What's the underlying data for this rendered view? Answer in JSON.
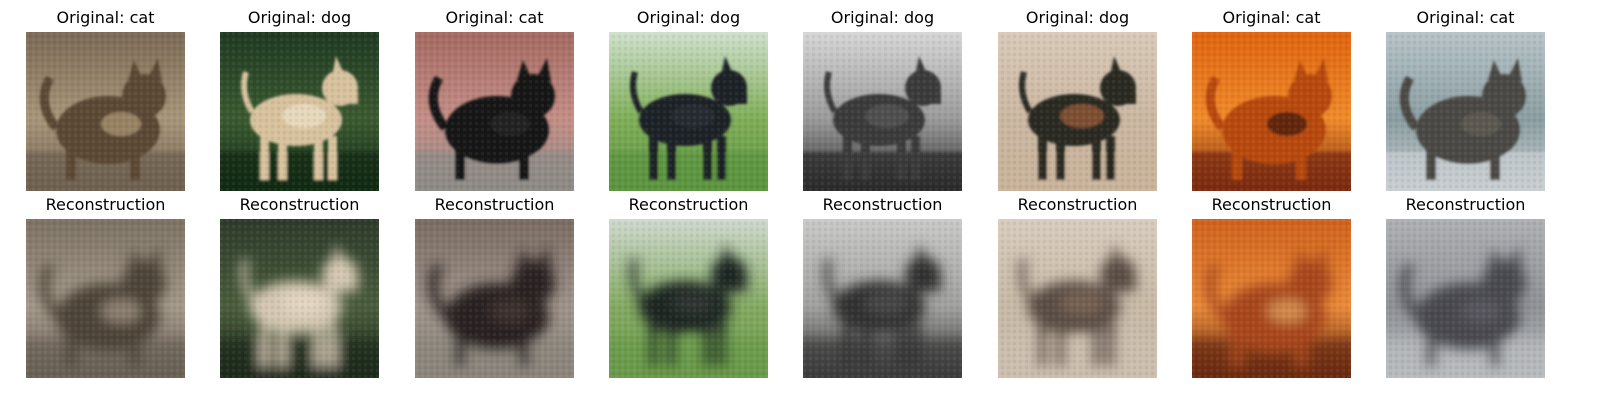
{
  "figure": {
    "reconstruction_label": "Reconstruction",
    "pairs": [
      {
        "original_title": "Original: cat",
        "subject": "cat",
        "original_palette": {
          "bg": "#7b6a55",
          "bg2": "#a89579",
          "subject": "#5b4a36",
          "accent": "#c9b28a",
          "ground": "#6e6150"
        },
        "recon_palette": {
          "bg": "#7d7262",
          "bg2": "#a3988a",
          "subject": "#4e4438",
          "accent": "#bfb3a1",
          "ground": "#6a6055"
        }
      },
      {
        "original_title": "Original: dog",
        "subject": "dog",
        "original_palette": {
          "bg": "#1f3a22",
          "bg2": "#3b5a30",
          "subject": "#d8c29e",
          "accent": "#f2e6cf",
          "ground": "#0f2a14"
        },
        "recon_palette": {
          "bg": "#2d3a2a",
          "bg2": "#4a5d3c",
          "subject": "#d4c7b2",
          "accent": "#ebe0cd",
          "ground": "#1f2a1c"
        }
      },
      {
        "original_title": "Original: cat",
        "subject": "cat",
        "original_palette": {
          "bg": "#a46a62",
          "bg2": "#c48e86",
          "subject": "#151515",
          "accent": "#2a2a2a",
          "ground": "#8d8a86"
        },
        "recon_palette": {
          "bg": "#7a6c62",
          "bg2": "#9e938a",
          "subject": "#2a2420",
          "accent": "#4a403a",
          "ground": "#8a847c"
        }
      },
      {
        "original_title": "Original: dog",
        "subject": "dog",
        "original_palette": {
          "bg": "#cfe0cd",
          "bg2": "#7fae58",
          "subject": "#1c2025",
          "accent": "#2f353c",
          "ground": "#5d9440"
        },
        "recon_palette": {
          "bg": "#cfd9cf",
          "bg2": "#84aa62",
          "subject": "#1f2523",
          "accent": "#3a403d",
          "ground": "#6a9a4a"
        }
      },
      {
        "original_title": "Original: dog",
        "subject": "dog",
        "original_palette": {
          "bg": "#d6d6d6",
          "bg2": "#9a9a9a",
          "subject": "#3a3a3a",
          "accent": "#5e5e5e",
          "ground": "#2b2b2b"
        },
        "recon_palette": {
          "bg": "#c9c9c7",
          "bg2": "#a0a09e",
          "subject": "#333333",
          "accent": "#555555",
          "ground": "#3a3a3a"
        }
      },
      {
        "original_title": "Original: dog",
        "subject": "dog",
        "original_palette": {
          "bg": "#d9c9b8",
          "bg2": "#cbb7a1",
          "subject": "#2a2a24",
          "accent": "#b5693a",
          "ground": "#c9b39b"
        },
        "recon_palette": {
          "bg": "#d8ccbd",
          "bg2": "#c7b9a6",
          "subject": "#5a4e44",
          "accent": "#8a705c",
          "ground": "#cdbfaf"
        }
      },
      {
        "original_title": "Original: cat",
        "subject": "cat",
        "original_palette": {
          "bg": "#e0640f",
          "bg2": "#f08a2a",
          "subject": "#b8480e",
          "accent": "#1b0f08",
          "ground": "#7a2a0a"
        },
        "recon_palette": {
          "bg": "#d0621c",
          "bg2": "#e88a3a",
          "subject": "#a8461a",
          "accent": "#f2c27a",
          "ground": "#6a2a10"
        }
      },
      {
        "original_title": "Original: cat",
        "subject": "cat",
        "original_palette": {
          "bg": "#b7c3c8",
          "bg2": "#8a9ea2",
          "subject": "#4c4a44",
          "accent": "#6a665c",
          "ground": "#c8cdd0"
        },
        "recon_palette": {
          "bg": "#aeb0b3",
          "bg2": "#8f9296",
          "subject": "#4a4850",
          "accent": "#66646b",
          "ground": "#b8babd"
        }
      }
    ]
  }
}
